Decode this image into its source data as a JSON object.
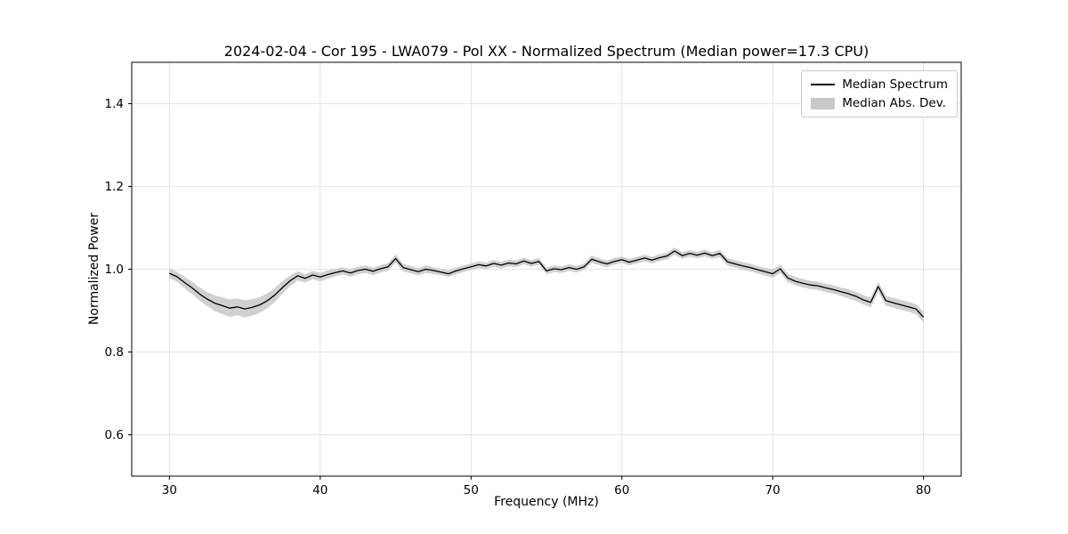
{
  "chart_data": {
    "type": "line",
    "title": "2024-02-04 - Cor 195 - LWA079 - Pol XX - Normalized Spectrum (Median power=17.3 CPU)",
    "xlabel": "Frequency (MHz)",
    "ylabel": "Normalized Power",
    "legend": [
      "Median Spectrum",
      "Median Abs. Dev."
    ],
    "legend_position": "upper right",
    "grid": true,
    "xlim": [
      27.5,
      82.5
    ],
    "ylim": [
      0.5,
      1.5
    ],
    "xticks": [
      30,
      40,
      50,
      60,
      70,
      80
    ],
    "xtick_labels": [
      "30",
      "40",
      "50",
      "60",
      "70",
      "80"
    ],
    "yticks": [
      0.6,
      0.8,
      1.0,
      1.2,
      1.4
    ],
    "ytick_labels": [
      "0.6",
      "0.8",
      "1.0",
      "1.2",
      "1.4"
    ],
    "x_start": 30,
    "x_step": 0.5,
    "series": [
      {
        "name": "Median Spectrum",
        "values": [
          0.99,
          0.982,
          0.968,
          0.955,
          0.94,
          0.928,
          0.918,
          0.912,
          0.906,
          0.909,
          0.904,
          0.908,
          0.914,
          0.924,
          0.938,
          0.956,
          0.972,
          0.984,
          0.978,
          0.986,
          0.981,
          0.987,
          0.992,
          0.996,
          0.991,
          0.997,
          1.0,
          0.995,
          1.001,
          1.006,
          1.026,
          1.004,
          0.999,
          0.994,
          1.0,
          0.997,
          0.993,
          0.989,
          0.996,
          1.001,
          1.006,
          1.011,
          1.008,
          1.014,
          1.01,
          1.015,
          1.013,
          1.02,
          1.014,
          1.019,
          0.996,
          1.001,
          0.999,
          1.004,
          1.0,
          1.006,
          1.024,
          1.018,
          1.013,
          1.019,
          1.023,
          1.017,
          1.022,
          1.027,
          1.022,
          1.028,
          1.032,
          1.044,
          1.033,
          1.038,
          1.034,
          1.039,
          1.033,
          1.038,
          1.018,
          1.013,
          1.008,
          1.004,
          0.999,
          0.994,
          0.989,
          1.001,
          0.979,
          0.971,
          0.966,
          0.962,
          0.96,
          0.955,
          0.951,
          0.946,
          0.941,
          0.935,
          0.926,
          0.92,
          0.958,
          0.924,
          0.919,
          0.914,
          0.909,
          0.904,
          0.884
        ]
      },
      {
        "name": "Median Abs. Dev.",
        "values": [
          0.012,
          0.012,
          0.014,
          0.015,
          0.016,
          0.017,
          0.019,
          0.02,
          0.021,
          0.02,
          0.021,
          0.02,
          0.019,
          0.018,
          0.017,
          0.015,
          0.013,
          0.011,
          0.01,
          0.01,
          0.01,
          0.01,
          0.009,
          0.009,
          0.009,
          0.009,
          0.009,
          0.009,
          0.009,
          0.009,
          0.01,
          0.009,
          0.009,
          0.009,
          0.009,
          0.008,
          0.008,
          0.008,
          0.008,
          0.008,
          0.008,
          0.008,
          0.008,
          0.008,
          0.008,
          0.008,
          0.008,
          0.008,
          0.008,
          0.008,
          0.008,
          0.008,
          0.008,
          0.008,
          0.008,
          0.008,
          0.009,
          0.008,
          0.008,
          0.008,
          0.008,
          0.008,
          0.008,
          0.008,
          0.008,
          0.008,
          0.008,
          0.009,
          0.008,
          0.008,
          0.008,
          0.008,
          0.008,
          0.009,
          0.009,
          0.009,
          0.009,
          0.009,
          0.009,
          0.009,
          0.01,
          0.01,
          0.01,
          0.01,
          0.01,
          0.01,
          0.01,
          0.01,
          0.01,
          0.01,
          0.011,
          0.011,
          0.011,
          0.012,
          0.012,
          0.012,
          0.012,
          0.012,
          0.012,
          0.012,
          0.013
        ]
      }
    ],
    "colors": {
      "line": "#000000",
      "band": "#c8c8c8",
      "grid": "#dcdcdc",
      "spine": "#000000",
      "background": "#ffffff"
    }
  }
}
